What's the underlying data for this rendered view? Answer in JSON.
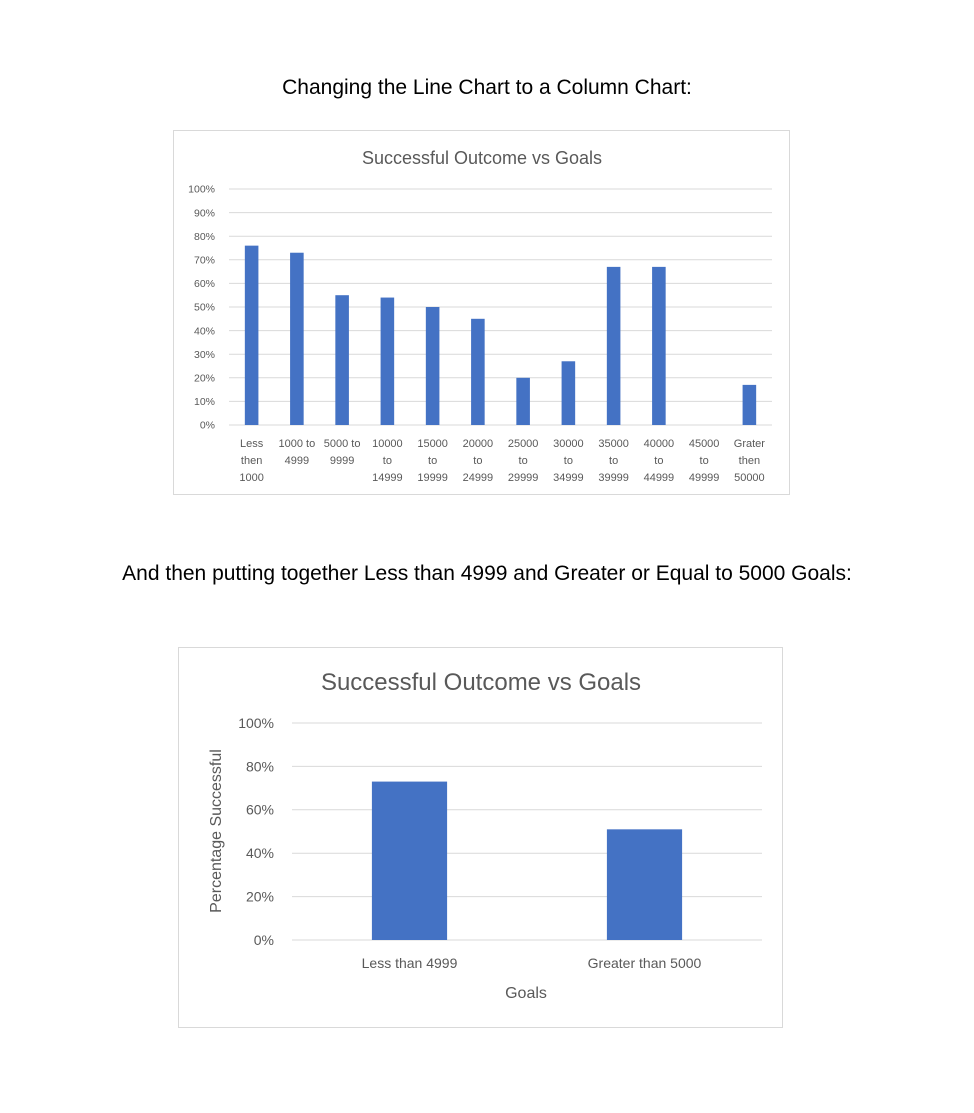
{
  "headings": {
    "first": "Changing the Line Chart to a Column Chart:",
    "second": "And then putting together Less than 4999 and Greater or Equal to 5000 Goals:"
  },
  "chart_data": [
    {
      "type": "bar",
      "title": "Successful Outcome vs Goals",
      "xlabel": "",
      "ylabel": "",
      "categories": [
        [
          "Less",
          "then",
          "1000"
        ],
        [
          "1000 to",
          "4999"
        ],
        [
          "5000 to",
          "9999"
        ],
        [
          "10000",
          "to",
          "14999"
        ],
        [
          "15000",
          "to",
          "19999"
        ],
        [
          "20000",
          "to",
          "24999"
        ],
        [
          "25000",
          "to",
          "29999"
        ],
        [
          "30000",
          "to",
          "34999"
        ],
        [
          "35000",
          "to",
          "39999"
        ],
        [
          "40000",
          "to",
          "44999"
        ],
        [
          "45000",
          "to",
          "49999"
        ],
        [
          "Grater",
          "then",
          "50000"
        ]
      ],
      "values": [
        0.76,
        0.73,
        0.55,
        0.54,
        0.5,
        0.45,
        0.2,
        0.27,
        0.67,
        0.67,
        0.0,
        0.17
      ],
      "ylim": [
        0,
        1
      ],
      "yticks": [
        "0%",
        "10%",
        "20%",
        "30%",
        "40%",
        "50%",
        "60%",
        "70%",
        "80%",
        "90%",
        "100%"
      ],
      "grid": true,
      "bar_color": "#4472c4",
      "gridline_color": "#d9d9d9"
    },
    {
      "type": "bar",
      "title": "Successful Outcome vs Goals",
      "xlabel": "Goals",
      "ylabel": "Percentage Successful",
      "categories": [
        [
          "Less than 4999"
        ],
        [
          "Greater than 5000"
        ]
      ],
      "values": [
        0.73,
        0.51
      ],
      "ylim": [
        0,
        1
      ],
      "yticks": [
        "0%",
        "20%",
        "40%",
        "60%",
        "80%",
        "100%"
      ],
      "grid": true,
      "bar_color": "#4472c4",
      "gridline_color": "#d9d9d9"
    }
  ]
}
